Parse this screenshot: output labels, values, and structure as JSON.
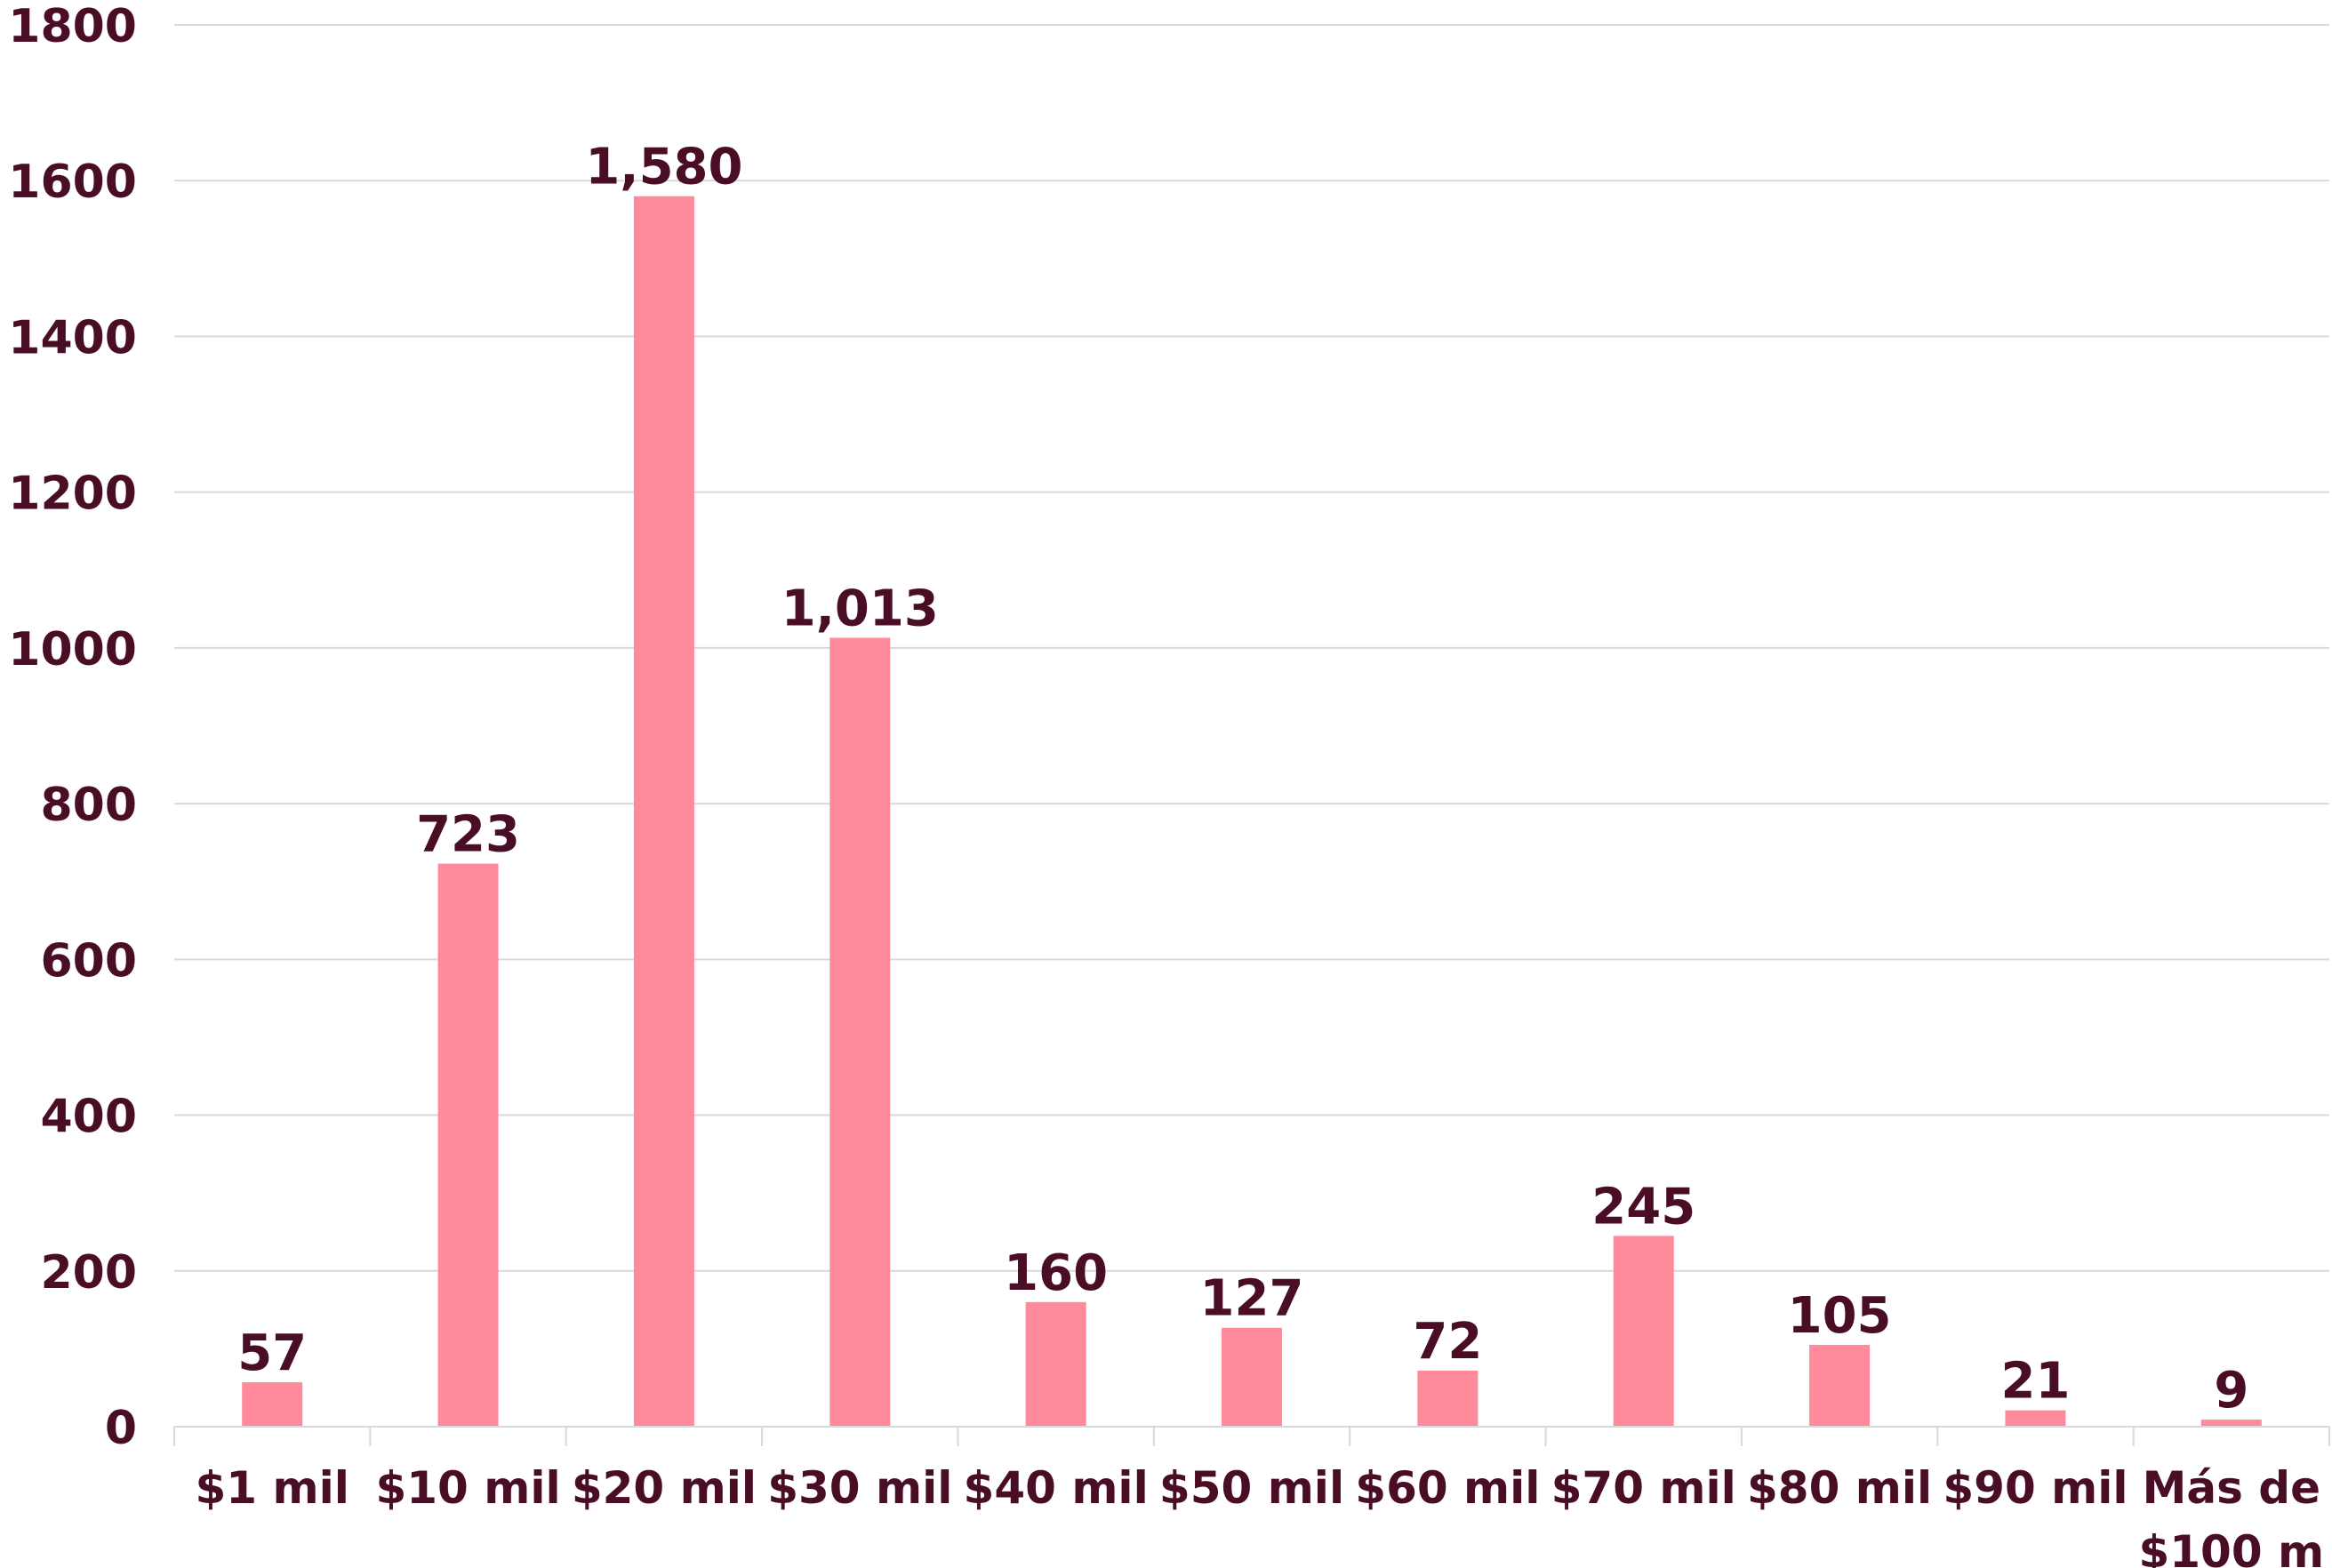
{
  "chart_data": {
    "type": "bar",
    "categories": [
      [
        "$1 mil"
      ],
      [
        "$10 mil"
      ],
      [
        "$20 mil"
      ],
      [
        "$30 mil"
      ],
      [
        "$40 mil"
      ],
      [
        "$50 mil"
      ],
      [
        "$60 mil"
      ],
      [
        "$70 mil"
      ],
      [
        "$80 mil"
      ],
      [
        "$90 mil"
      ],
      [
        "Más de",
        "$100 m"
      ]
    ],
    "values": [
      57,
      723,
      1580,
      1013,
      160,
      127,
      72,
      245,
      105,
      21,
      9
    ],
    "data_labels": [
      "57",
      "723",
      "1,580",
      "1,013",
      "160",
      "127",
      "72",
      "245",
      "105",
      "21",
      "9"
    ],
    "yticks": [
      "0",
      "200",
      "400",
      "600",
      "800",
      "1000",
      "1200",
      "1400",
      "1600",
      "1800"
    ],
    "ylim": [
      0,
      1800
    ],
    "title": "",
    "xlabel": "",
    "ylabel": "",
    "grid": true,
    "legend": "none",
    "colors": {
      "bar": "#ff8a9b",
      "text": "#4a0d26",
      "grid": "#d9d9d9"
    }
  }
}
